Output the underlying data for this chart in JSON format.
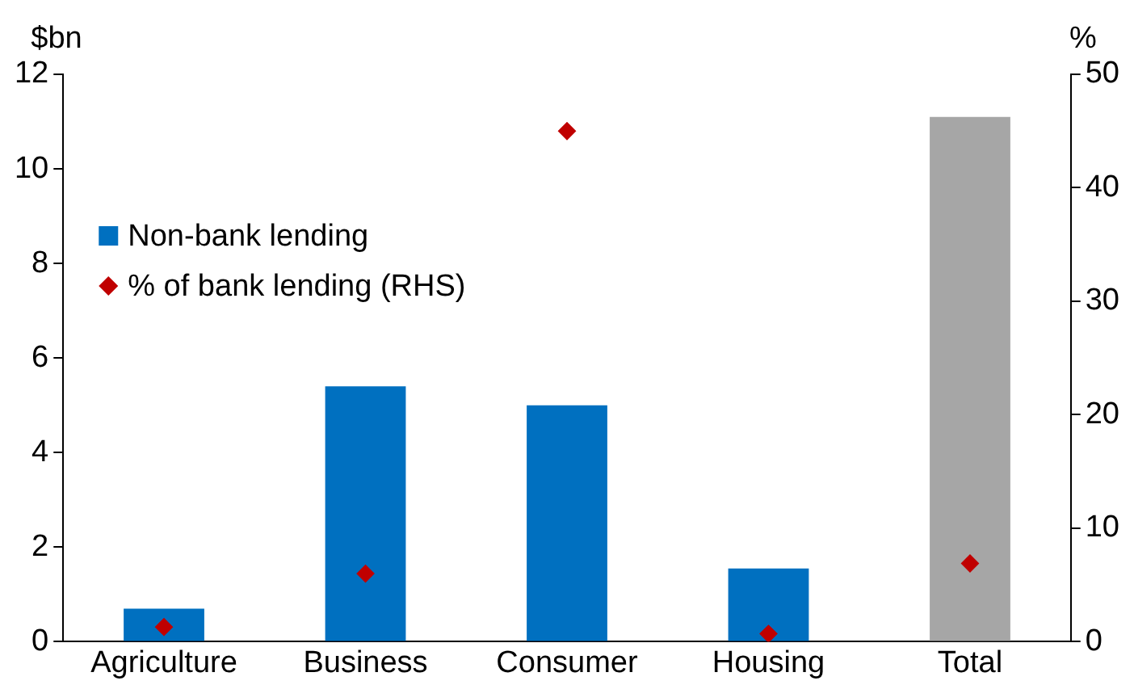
{
  "chart_data": {
    "type": "bar",
    "categories": [
      "Agriculture",
      "Business",
      "Consumer",
      "Housing",
      "Total"
    ],
    "ylabel": "$bn",
    "y2label": "%",
    "series": [
      {
        "name": "Non-bank lending",
        "color": "#0070c0",
        "colors": [
          "#0070c0",
          "#0070c0",
          "#0070c0",
          "#0070c0",
          "#a6a6a6"
        ],
        "values": [
          0.7,
          5.4,
          5.0,
          1.55,
          11.1
        ]
      },
      {
        "name": "% of bank lending (RHS)",
        "type": "scatter",
        "axis": "y2",
        "color": "#c00000",
        "x": [
          "Agriculture",
          "Business",
          "Consumer",
          "Housing",
          "Total"
        ],
        "values": [
          1.3,
          6.0,
          45,
          0.7,
          6.9
        ]
      }
    ],
    "ylim": [
      0,
      12
    ],
    "yticks": [
      0,
      2,
      4,
      6,
      8,
      10,
      12
    ],
    "y2lim": [
      0,
      50
    ],
    "y2ticks": [
      0,
      10,
      20,
      30,
      40,
      50
    ],
    "grid": false,
    "legend": "left",
    "marker": "diamond"
  }
}
